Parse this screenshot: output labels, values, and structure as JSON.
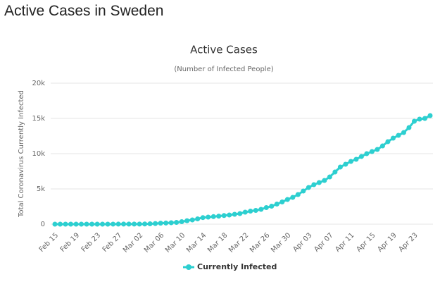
{
  "page_title": "Active Cases in Sweden",
  "chart_data": {
    "type": "line",
    "title": "Active Cases",
    "subtitle": "(Number of Infected People)",
    "y_label": "Total Coronavirus Currently Infected",
    "categories": [
      "Feb 15",
      null,
      null,
      null,
      "Feb 19",
      null,
      null,
      null,
      "Feb 23",
      null,
      null,
      null,
      "Feb 27",
      null,
      null,
      null,
      "Mar 02",
      null,
      null,
      null,
      "Mar 06",
      null,
      null,
      null,
      "Mar 10",
      null,
      null,
      null,
      "Mar 14",
      null,
      null,
      null,
      "Mar 18",
      null,
      null,
      null,
      "Mar 22",
      null,
      null,
      null,
      "Mar 26",
      null,
      null,
      null,
      "Mar 30",
      null,
      null,
      null,
      "Apr 03",
      null,
      null,
      null,
      "Apr 07",
      null,
      null,
      null,
      "Apr 11",
      null,
      null,
      null,
      "Apr 15",
      null,
      null,
      null,
      "Apr 19",
      null,
      null,
      null,
      "Apr 23",
      null,
      null,
      null
    ],
    "series": [
      {
        "name": "Currently Infected",
        "color": "#2dcfd0",
        "values": [
          1,
          1,
          1,
          1,
          1,
          1,
          1,
          1,
          1,
          2,
          3,
          6,
          7,
          10,
          11,
          12,
          13,
          28,
          50,
          85,
          135,
          160,
          200,
          245,
          350,
          490,
          600,
          750,
          930,
          1000,
          1070,
          1140,
          1220,
          1300,
          1400,
          1500,
          1700,
          1850,
          1950,
          2100,
          2350,
          2550,
          2850,
          3150,
          3500,
          3800,
          4200,
          4700,
          5200,
          5600,
          5900,
          6200,
          6700,
          7400,
          8100,
          8500,
          8900,
          9200,
          9600,
          10000,
          10300,
          10600,
          11100,
          11700,
          12200,
          12600,
          13000,
          13700,
          14600,
          14900,
          15000,
          15400
        ]
      }
    ],
    "ylim": [
      0,
      20000
    ],
    "yticks": [
      0,
      {
        "value": 5000,
        "label": "5k"
      },
      {
        "value": 10000,
        "label": "10k"
      },
      {
        "value": 15000,
        "label": "15k"
      },
      {
        "value": 20000,
        "label": "20k"
      }
    ],
    "grid": true,
    "legend": "bottom"
  }
}
